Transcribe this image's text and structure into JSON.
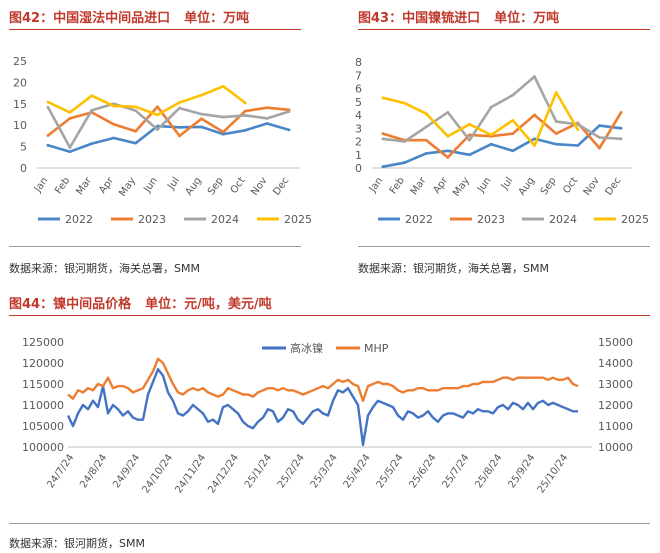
{
  "figures": [
    {
      "title": "图42：中国湿法中间品进口",
      "unit": "单位：万吨",
      "source": "数据来源：银河期货，海关总署，SMM"
    },
    {
      "title": "图43：中国镍锍进口",
      "unit": "单位：万吨",
      "source": "数据来源：银河期货，海关总署，SMM"
    },
    {
      "title": "图44：镍中间品价格",
      "unit": "单位：元/吨，美元/吨",
      "source": "数据来源：银河期货，SMM"
    }
  ],
  "chart_data": [
    {
      "type": "line",
      "title": "图42：中国湿法中间品进口",
      "categories": [
        "Jan",
        "Feb",
        "Mar",
        "Apr",
        "May",
        "Jun",
        "Jul",
        "Aug",
        "Sep",
        "Oct",
        "Nov",
        "Dec"
      ],
      "ylim": [
        0,
        25
      ],
      "yticks": [
        "0",
        "5",
        "10",
        "15",
        "20",
        "25"
      ],
      "series": [
        {
          "name": "2022",
          "color": "#4a86c8",
          "values": [
            5.3,
            3.8,
            5.7,
            7.0,
            5.8,
            9.8,
            9.5,
            9.6,
            7.9,
            8.8,
            10.4,
            8.9
          ]
        },
        {
          "name": "2023",
          "color": "#ed7d31",
          "values": [
            7.6,
            11.6,
            13.0,
            10.2,
            8.6,
            14.3,
            7.5,
            11.5,
            8.4,
            13.3,
            14.1,
            13.6
          ]
        },
        {
          "name": "2024",
          "color": "#a5a5a5",
          "values": [
            14.2,
            4.8,
            13.5,
            15.0,
            13.4,
            9.0,
            14.0,
            12.6,
            11.9,
            12.3,
            11.6,
            13.2
          ]
        },
        {
          "name": "2025",
          "color": "#ffc000",
          "values": [
            15.4,
            13.0,
            16.9,
            14.5,
            14.3,
            12.4,
            15.3,
            17.0,
            19.1,
            15.2,
            null,
            null
          ]
        }
      ]
    },
    {
      "type": "line",
      "title": "图43：中国镍锍进口",
      "categories": [
        "Jan",
        "Feb",
        "Mar",
        "Apr",
        "May",
        "Jun",
        "Jul",
        "Aug",
        "Sep",
        "Oct",
        "Nov",
        "Dec"
      ],
      "ylim": [
        0,
        8
      ],
      "yticks": [
        "0",
        "1",
        "2",
        "3",
        "4",
        "5",
        "6",
        "7",
        "8"
      ],
      "series": [
        {
          "name": "2022",
          "color": "#4a86c8",
          "values": [
            0.1,
            0.4,
            1.1,
            1.3,
            1.0,
            1.8,
            1.3,
            2.2,
            1.8,
            1.7,
            3.2,
            3.0
          ]
        },
        {
          "name": "2023",
          "color": "#ed7d31",
          "values": [
            2.6,
            2.1,
            2.1,
            0.8,
            2.5,
            2.4,
            2.6,
            4.0,
            2.6,
            3.4,
            1.5,
            4.2
          ]
        },
        {
          "name": "2024",
          "color": "#a5a5a5",
          "values": [
            2.2,
            2.0,
            3.1,
            4.2,
            2.1,
            4.6,
            5.5,
            6.9,
            3.5,
            3.3,
            2.3,
            2.2
          ]
        },
        {
          "name": "2025",
          "color": "#ffc000",
          "values": [
            5.3,
            4.9,
            4.1,
            2.4,
            3.3,
            2.5,
            3.6,
            1.7,
            5.7,
            2.9,
            null,
            null
          ]
        }
      ]
    },
    {
      "type": "line",
      "title": "图44：镍中间品价格",
      "x_ticks": [
        "24/7/24",
        "24/8/24",
        "24/9/24",
        "24/10/24",
        "24/11/24",
        "24/12/24",
        "25/1/24",
        "25/2/24",
        "25/3/24",
        "25/4/24",
        "25/5/24",
        "25/6/24",
        "25/7/24",
        "25/8/24",
        "25/9/24",
        "25/10/24"
      ],
      "ylim_left": [
        100000,
        125000
      ],
      "ylim_right": [
        10000,
        15000
      ],
      "yticks_left": [
        "100000",
        "105000",
        "110000",
        "115000",
        "120000",
        "125000"
      ],
      "yticks_right": [
        "10000",
        "11000",
        "12000",
        "13000",
        "14000",
        "15000"
      ],
      "series": [
        {
          "name": "高冰镍",
          "axis": "left",
          "color": "#4472c4",
          "values": [
            107500,
            105000,
            108000,
            110000,
            109000,
            111000,
            109500,
            114500,
            108000,
            110000,
            109000,
            107500,
            108500,
            107000,
            106500,
            106500,
            112500,
            115500,
            118500,
            117000,
            113000,
            111000,
            108000,
            107500,
            108500,
            110000,
            109000,
            108000,
            106000,
            106500,
            105500,
            109500,
            110000,
            109000,
            108000,
            106000,
            105000,
            104500,
            106000,
            107000,
            109000,
            108500,
            106000,
            107000,
            109000,
            108500,
            106500,
            105500,
            107000,
            108500,
            109000,
            108000,
            107500,
            111000,
            113500,
            113000,
            114000,
            112000,
            110000,
            100500,
            107500,
            109500,
            111000,
            110500,
            110000,
            109500,
            107500,
            106500,
            108500,
            108000,
            107000,
            107500,
            108500,
            107000,
            106000,
            107500,
            108000,
            108000,
            107500,
            107000,
            108500,
            108000,
            109000,
            108500,
            108500,
            108000,
            109500,
            110000,
            109000,
            110500,
            110000,
            109000,
            110500,
            109000,
            110500,
            111000,
            110000,
            110500,
            110000,
            109500,
            109000,
            108500,
            108500
          ]
        },
        {
          "name": "MHP",
          "axis": "right",
          "color": "#ed7d31",
          "values": [
            12500,
            12300,
            12700,
            12600,
            12800,
            12700,
            13000,
            12900,
            13300,
            12800,
            12900,
            12900,
            12800,
            12600,
            12700,
            12800,
            13200,
            13600,
            14200,
            14000,
            13500,
            13000,
            12600,
            12500,
            12700,
            12800,
            12700,
            12800,
            12600,
            12500,
            12400,
            12500,
            12800,
            12700,
            12600,
            12500,
            12500,
            12400,
            12600,
            12700,
            12800,
            12800,
            12700,
            12800,
            12700,
            12700,
            12600,
            12500,
            12600,
            12700,
            12800,
            12900,
            12800,
            13000,
            13200,
            13100,
            13200,
            13000,
            12900,
            12200,
            12900,
            13000,
            13100,
            13000,
            13000,
            12900,
            12700,
            12600,
            12700,
            12700,
            12800,
            12800,
            12700,
            12700,
            12700,
            12800,
            12800,
            12800,
            12800,
            12900,
            12900,
            13000,
            13000,
            13100,
            13100,
            13100,
            13200,
            13300,
            13300,
            13200,
            13300,
            13300,
            13300,
            13300,
            13300,
            13300,
            13200,
            13300,
            13200,
            13200,
            13300,
            13000,
            12900
          ]
        }
      ]
    }
  ]
}
